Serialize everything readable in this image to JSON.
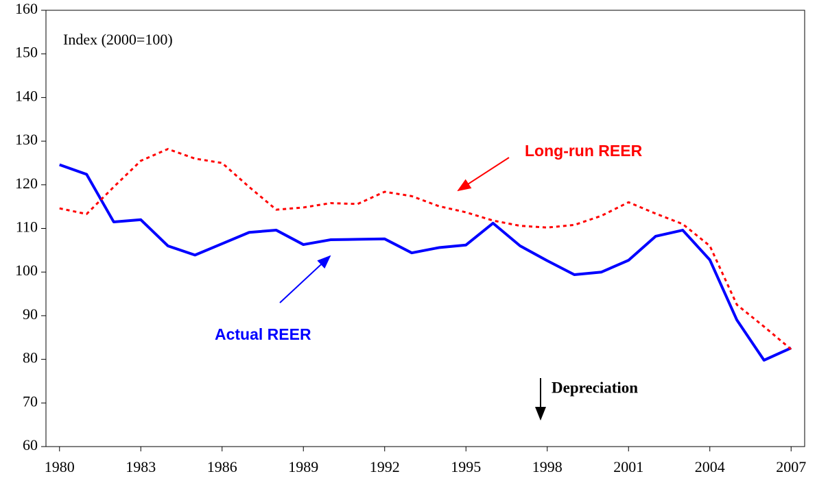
{
  "chart_data": {
    "type": "line",
    "y_label": "Index (2000=100)",
    "annotations": [
      "Long-run REER",
      "Actual REER",
      "Depreciation"
    ],
    "x": [
      1980,
      1981,
      1982,
      1983,
      1984,
      1985,
      1986,
      1987,
      1988,
      1989,
      1990,
      1991,
      1992,
      1993,
      1994,
      1995,
      1996,
      1997,
      1998,
      1999,
      2000,
      2001,
      2002,
      2003,
      2004,
      2005,
      2006,
      2007
    ],
    "xlim": [
      1979.5,
      2007.5
    ],
    "xticks": [
      1980,
      1983,
      1986,
      1989,
      1992,
      1995,
      1998,
      2001,
      2004,
      2007
    ],
    "ylim": [
      60,
      160
    ],
    "yticks": [
      60,
      70,
      80,
      90,
      100,
      110,
      120,
      130,
      140,
      150,
      160
    ],
    "series": [
      {
        "name": "Actual REER",
        "color": "#0000ff",
        "style": "solid",
        "values": [
          124.6,
          122.4,
          111.5,
          112,
          106,
          103.9,
          106.5,
          109.1,
          109.6,
          106.3,
          107.4,
          107.5,
          107.6,
          104.4,
          105.6,
          106.2,
          111.2,
          106,
          102.6,
          99.4,
          100,
          102.7,
          108.2,
          109.6,
          102.8,
          89,
          79.8,
          82.6
        ]
      },
      {
        "name": "Long-run REER",
        "color": "#ff0000",
        "style": "dotted",
        "values": [
          114.6,
          113.3,
          119.5,
          125.5,
          128.2,
          126,
          125,
          119.5,
          114.3,
          114.8,
          115.8,
          115.6,
          118.4,
          117.4,
          115.1,
          113.7,
          111.8,
          110.6,
          110.2,
          110.8,
          112.9,
          116,
          113.4,
          111,
          106,
          92.5,
          87.5,
          82.3
        ]
      }
    ]
  }
}
